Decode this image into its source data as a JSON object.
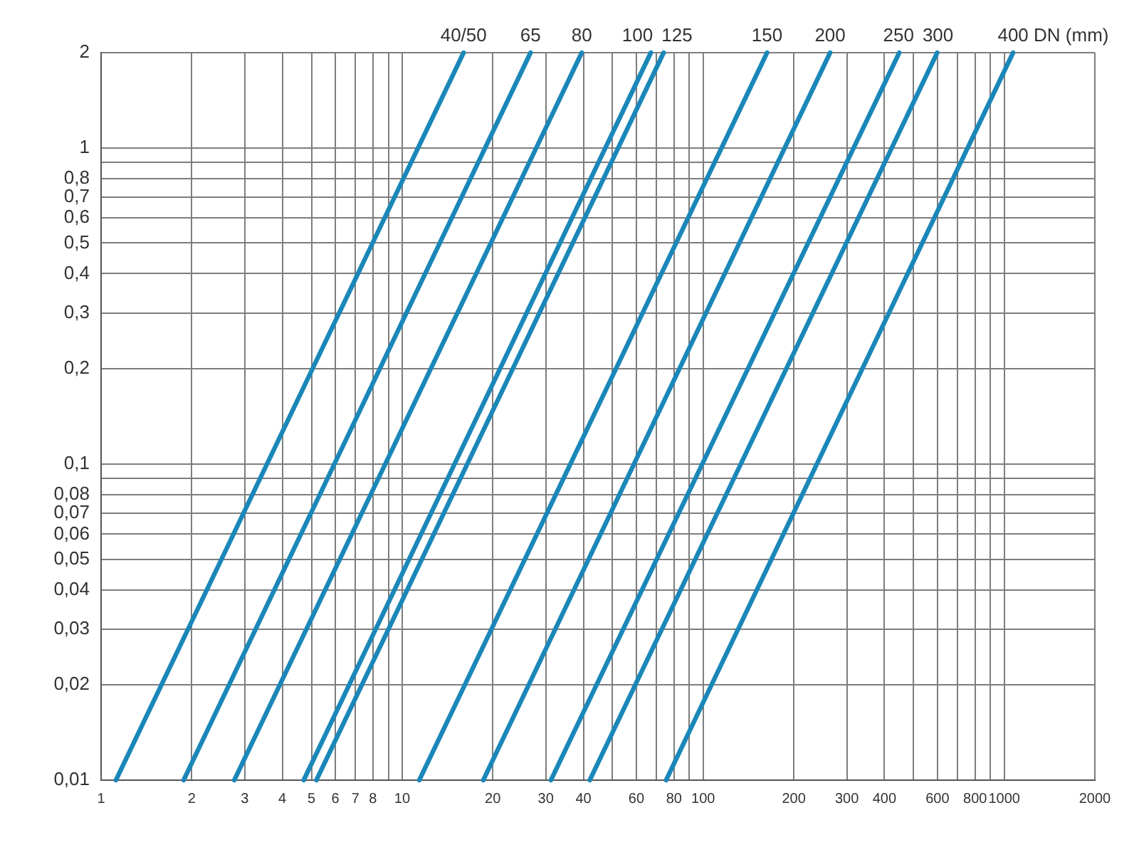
{
  "chart_data": {
    "type": "line",
    "log": "xy",
    "grid": true,
    "legend": false,
    "marker": "none",
    "line_style": "solid",
    "xlim": [
      1,
      2000
    ],
    "ylim": [
      0.01,
      2
    ],
    "xticks": [
      1,
      2,
      3,
      4,
      5,
      6,
      7,
      8,
      {
        "value": 9,
        "label": null
      },
      10,
      20,
      30,
      40,
      {
        "value": 50,
        "label": null
      },
      60,
      {
        "value": 70,
        "label": null
      },
      80,
      {
        "value": 90,
        "label": null
      },
      100,
      200,
      300,
      400,
      {
        "value": 500,
        "label": null
      },
      600,
      {
        "value": 700,
        "label": null
      },
      800,
      {
        "value": 900,
        "label": null
      },
      1000,
      2000
    ],
    "yticks": [
      {
        "value": 0.01,
        "label": "0,01"
      },
      {
        "value": 0.02,
        "label": "0,02"
      },
      {
        "value": 0.03,
        "label": "0,03"
      },
      {
        "value": 0.04,
        "label": "0,04"
      },
      {
        "value": 0.05,
        "label": "0,05"
      },
      {
        "value": 0.06,
        "label": "0,06"
      },
      {
        "value": 0.07,
        "label": "0,07"
      },
      {
        "value": 0.08,
        "label": "0,08"
      },
      {
        "value": 0.09,
        "label": null
      },
      {
        "value": 0.1,
        "label": "0,1"
      },
      {
        "value": 0.2,
        "label": "0,2"
      },
      {
        "value": 0.3,
        "label": "0,3"
      },
      {
        "value": 0.4,
        "label": "0,4"
      },
      {
        "value": 0.5,
        "label": "0,5"
      },
      {
        "value": 0.6,
        "label": "0,6"
      },
      {
        "value": 0.7,
        "label": "0,7"
      },
      {
        "value": 0.8,
        "label": "0,8"
      },
      {
        "value": 0.9,
        "label": null
      },
      1,
      2
    ],
    "annotations": [
      "DN (mm)"
    ],
    "series": [
      {
        "name": "40/50",
        "color": "#1b87b9",
        "x": [
          1.12,
          16
        ],
        "values": [
          0.01,
          2
        ]
      },
      {
        "name": "65",
        "color": "#1b87b9",
        "x": [
          1.88,
          26.7
        ],
        "values": [
          0.01,
          2
        ]
      },
      {
        "name": "80",
        "color": "#1b87b9",
        "x": [
          2.77,
          39.5
        ],
        "values": [
          0.01,
          2
        ]
      },
      {
        "name": "100",
        "color": "#1b87b9",
        "x": [
          4.71,
          67
        ],
        "values": [
          0.01,
          2
        ]
      },
      {
        "name": "125",
        "color": "#1b87b9",
        "x": [
          5.19,
          73.9
        ],
        "values": [
          0.01,
          2
        ]
      },
      {
        "name": "150",
        "color": "#1b87b9",
        "x": [
          11.4,
          163
        ],
        "values": [
          0.01,
          2
        ]
      },
      {
        "name": "200",
        "color": "#1b87b9",
        "x": [
          18.6,
          264
        ],
        "values": [
          0.01,
          2
        ]
      },
      {
        "name": "250",
        "color": "#1b87b9",
        "x": [
          31.2,
          448
        ],
        "values": [
          0.01,
          2
        ]
      },
      {
        "name": "300",
        "color": "#1b87b9",
        "x": [
          42,
          599
        ],
        "values": [
          0.01,
          2
        ]
      },
      {
        "name": "400",
        "color": "#1b87b9",
        "x": [
          75.3,
          1070
        ],
        "values": [
          0.01,
          2
        ]
      }
    ]
  }
}
